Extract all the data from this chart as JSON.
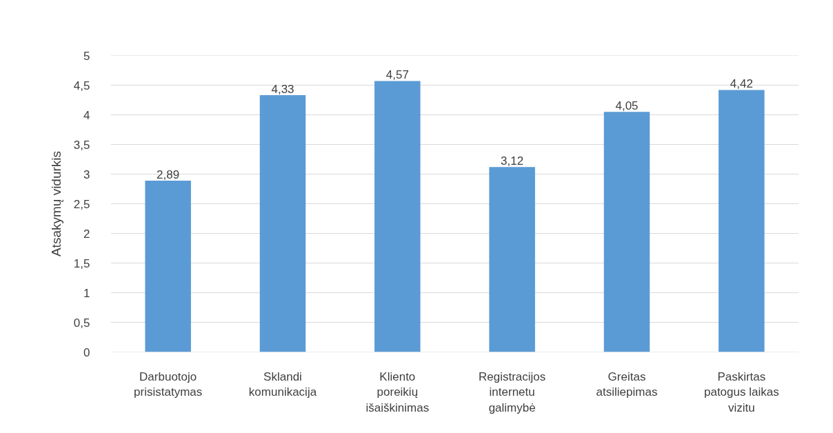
{
  "chart_data": {
    "type": "bar",
    "ylabel": "Atsakymų vidurkis",
    "categories": [
      "Darbuotojo prisistatymas",
      "Sklandi komunikacija",
      "Kliento poreikių išaiškinimas",
      "Registracijos internetu galimybė",
      "Greitas atsiliepimas",
      "Paskirtas patogus laikas vizitu"
    ],
    "values": [
      2.89,
      4.33,
      4.57,
      3.12,
      4.05,
      4.42
    ],
    "value_labels": [
      "2,89",
      "4,33",
      "4,57",
      "3,12",
      "4,05",
      "4,42"
    ],
    "color": "#5b9bd5",
    "ylim": [
      0,
      5
    ],
    "yticks": [
      0,
      {
        "value": 0.5,
        "label": "0,5"
      },
      1,
      {
        "value": 1.5,
        "label": "1,5"
      },
      2,
      {
        "value": 2.5,
        "label": "2,5"
      },
      3,
      {
        "value": 3.5,
        "label": "3,5"
      },
      4,
      {
        "value": 4.5,
        "label": "4,5"
      },
      5
    ],
    "grid": "y"
  }
}
